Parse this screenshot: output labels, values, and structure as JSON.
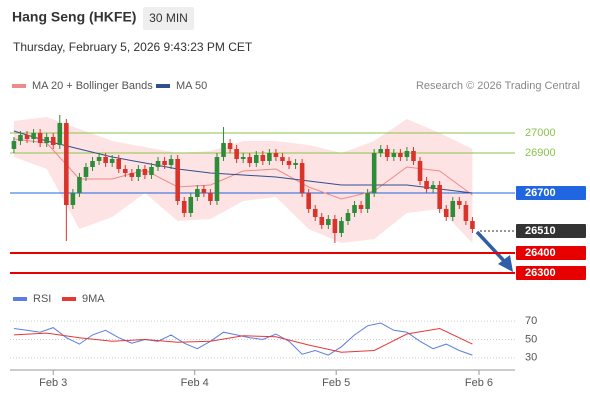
{
  "chart_data": [
    {
      "type": "candlestick",
      "title": "Hang Seng (HKFE)",
      "interval": "30 MIN",
      "subtitle": "Thursday, February 5, 2026 9:43:23 PM CET",
      "source": "Research © 2026 Trading Central",
      "xlim": [
        -0.6,
        76.5
      ],
      "ylim": [
        26240,
        27165
      ],
      "up_color": "#2e8b3a",
      "down_color": "#d9342b",
      "open": [
        26920,
        26960,
        26990,
        26970,
        27000,
        26950,
        26980,
        26940,
        27050,
        26640,
        26700,
        26780,
        26830,
        26860,
        26880,
        26850,
        26870,
        26820,
        26800,
        26780,
        26820,
        26790,
        26830,
        26860,
        26840,
        26870,
        26660,
        26600,
        26680,
        26720,
        26700,
        26660,
        26880,
        26950,
        26920,
        26870,
        26880,
        26850,
        26890,
        26860,
        26900,
        26880,
        26860,
        26840,
        26850,
        26700,
        26620,
        26580,
        26540,
        26570,
        26500,
        26560,
        26600,
        26640,
        26620,
        26700,
        26900,
        26920,
        26880,
        26900,
        26880,
        26910,
        26860,
        26760,
        26720,
        26740,
        26620,
        26580,
        26660,
        26640,
        26560
      ],
      "high": [
        26980,
        27010,
        27010,
        27020,
        27020,
        27000,
        27000,
        27090,
        27070,
        26720,
        26800,
        26850,
        26880,
        26900,
        26900,
        26890,
        26890,
        26840,
        26820,
        26840,
        26840,
        26850,
        26880,
        26880,
        26890,
        26890,
        26680,
        26700,
        26740,
        26740,
        26720,
        26900,
        27030,
        26970,
        26940,
        26900,
        26900,
        26910,
        26910,
        26920,
        26920,
        26900,
        26880,
        26870,
        26870,
        26720,
        26640,
        26600,
        26590,
        26590,
        26580,
        26620,
        26660,
        26660,
        26720,
        26920,
        26940,
        26940,
        26920,
        26920,
        26930,
        26930,
        26880,
        26780,
        26760,
        26760,
        26640,
        26680,
        26680,
        26660,
        26580
      ],
      "low": [
        26900,
        26940,
        26950,
        26950,
        26930,
        26930,
        26920,
        26920,
        26460,
        26620,
        26680,
        26760,
        26810,
        26840,
        26830,
        26830,
        26800,
        26780,
        26760,
        26760,
        26770,
        26770,
        26810,
        26820,
        26820,
        26640,
        26580,
        26580,
        26660,
        26680,
        26640,
        26640,
        26860,
        26900,
        26850,
        26850,
        26830,
        26830,
        26840,
        26840,
        26860,
        26840,
        26820,
        26820,
        26680,
        26600,
        26560,
        26520,
        26520,
        26450,
        26480,
        26540,
        26580,
        26600,
        26600,
        26680,
        26880,
        26860,
        26860,
        26860,
        26860,
        26840,
        26740,
        26700,
        26700,
        26600,
        26560,
        26560,
        26620,
        26540,
        26500
      ],
      "close": [
        26960,
        26990,
        26970,
        27000,
        26950,
        26980,
        26940,
        27050,
        26640,
        26700,
        26780,
        26830,
        26860,
        26880,
        26850,
        26870,
        26820,
        26800,
        26780,
        26820,
        26790,
        26830,
        26860,
        26840,
        26870,
        26660,
        26600,
        26680,
        26720,
        26700,
        26660,
        26880,
        26950,
        26920,
        26870,
        26880,
        26850,
        26890,
        26860,
        26900,
        26880,
        26860,
        26840,
        26850,
        26700,
        26620,
        26580,
        26540,
        26570,
        26500,
        26560,
        26600,
        26640,
        26620,
        26700,
        26900,
        26920,
        26880,
        26900,
        26880,
        26910,
        26860,
        26760,
        26720,
        26740,
        26620,
        26580,
        26660,
        26640,
        26560,
        26520
      ],
      "series": [
        {
          "name": "MA 20 + Bollinger Bands",
          "color": "#f08a8a",
          "band_color": "#fde3e3",
          "x": [
            0,
            5,
            10,
            15,
            20,
            25,
            30,
            35,
            40,
            45,
            50,
            55,
            60,
            65,
            70
          ],
          "values": [
            26970,
            26950,
            26770,
            26770,
            26815,
            26730,
            26740,
            26810,
            26820,
            26730,
            26670,
            26710,
            26830,
            26810,
            26690
          ],
          "upper": [
            27060,
            27080,
            27020,
            26960,
            26930,
            26900,
            26910,
            26960,
            26960,
            26940,
            26900,
            26960,
            27070,
            27000,
            26920
          ],
          "lower": [
            26880,
            26820,
            26520,
            26580,
            26700,
            26560,
            26570,
            26660,
            26680,
            26520,
            26450,
            26470,
            26600,
            26620,
            26450
          ]
        },
        {
          "name": "MA 50",
          "color": "#2f4f8f",
          "x": [
            0,
            5,
            10,
            15,
            20,
            25,
            30,
            35,
            40,
            45,
            50,
            55,
            60,
            65,
            70
          ],
          "values": [
            27010,
            26960,
            26920,
            26880,
            26850,
            26820,
            26800,
            26790,
            26780,
            26760,
            26740,
            26740,
            26740,
            26720,
            26700
          ]
        }
      ],
      "levels": [
        {
          "value": 27000,
          "color": "#8bc34a",
          "box": false
        },
        {
          "value": 26900,
          "color": "#8bc34a",
          "box": false
        },
        {
          "value": 26700,
          "color": "#1f66e0",
          "box": true
        },
        {
          "value": 26400,
          "color": "#e60000",
          "box": true
        },
        {
          "value": 26300,
          "color": "#e60000",
          "box": true
        }
      ],
      "last": 26510,
      "last_color": "#333333"
    },
    {
      "type": "line",
      "xlim": [
        -0.6,
        76.5
      ],
      "ylim": [
        20,
        80
      ],
      "yticks": [
        30,
        50,
        70
      ],
      "grid": true,
      "xticks": [
        {
          "value": 6,
          "label": "Feb 3"
        },
        {
          "value": 27.6,
          "label": "Feb 4"
        },
        {
          "value": 49.2,
          "label": "Feb 5"
        },
        {
          "value": 71,
          "label": "Feb 6"
        }
      ],
      "series": [
        {
          "name": "RSI",
          "color": "#5b7fe0",
          "x": [
            0,
            2,
            4,
            6,
            8,
            10,
            12,
            14,
            16,
            18,
            20,
            22,
            24,
            26,
            28,
            30,
            32,
            34,
            36,
            38,
            40,
            42,
            44,
            46,
            48,
            50,
            52,
            54,
            56,
            58,
            60,
            62,
            64,
            66,
            68,
            70
          ],
          "values": [
            62,
            60,
            58,
            63,
            52,
            45,
            55,
            60,
            52,
            46,
            50,
            48,
            55,
            46,
            40,
            48,
            58,
            55,
            52,
            50,
            56,
            48,
            34,
            38,
            33,
            42,
            55,
            65,
            68,
            60,
            58,
            48,
            40,
            45,
            38,
            33
          ]
        },
        {
          "name": "9MA",
          "color": "#e53935",
          "x": [
            0,
            5,
            10,
            15,
            20,
            25,
            30,
            35,
            40,
            45,
            50,
            55,
            60,
            65,
            70
          ],
          "values": [
            55,
            57,
            52,
            48,
            50,
            47,
            48,
            54,
            53,
            44,
            36,
            38,
            56,
            62,
            45
          ]
        }
      ]
    }
  ]
}
